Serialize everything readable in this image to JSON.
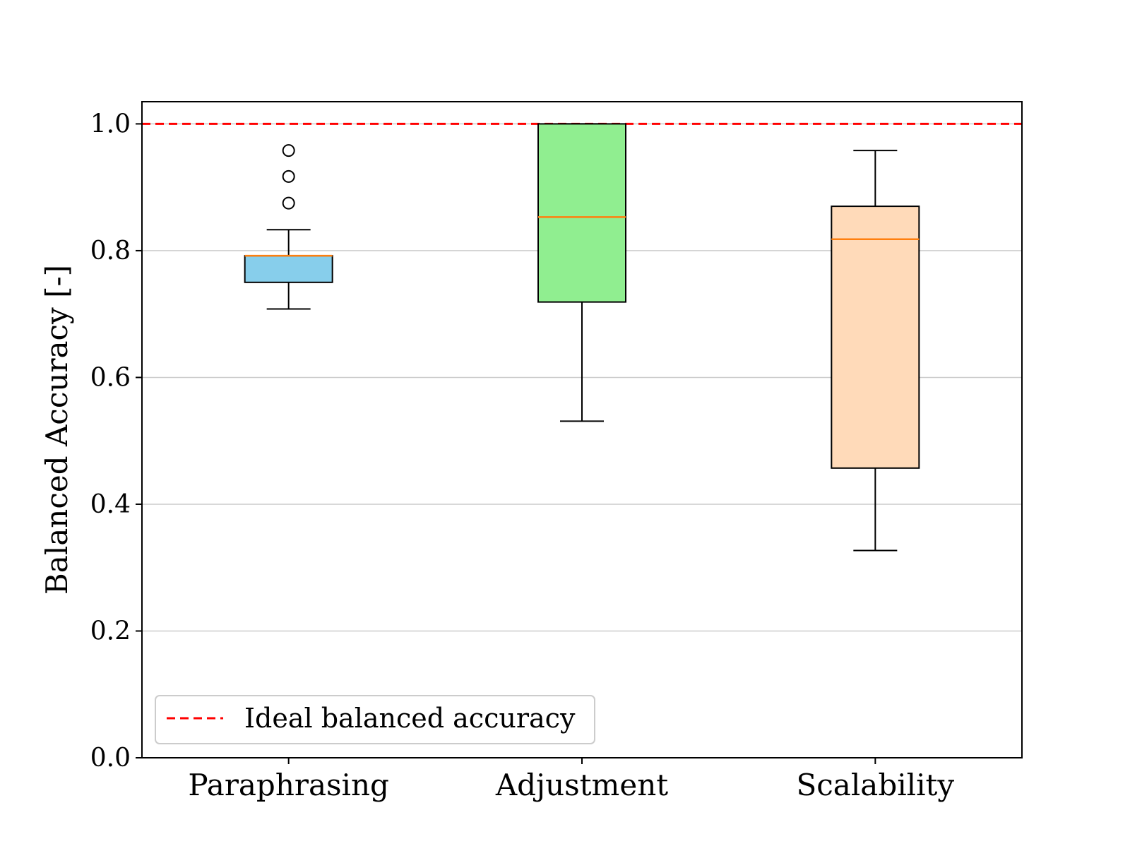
{
  "chart_data": {
    "type": "boxplot",
    "title": "",
    "xlabel": "",
    "ylabel": "Balanced Accuracy [-]",
    "ylim": [
      0.0,
      1.035
    ],
    "yticks": [
      0.0,
      0.2,
      0.4,
      0.6,
      0.8,
      1.0
    ],
    "ytick_labels": [
      "0.0",
      "0.2",
      "0.4",
      "0.6",
      "0.8",
      "1.0"
    ],
    "grid": "horizontal",
    "categories": [
      "Paraphrasing",
      "Adjustment",
      "Scalability"
    ],
    "boxes": [
      {
        "category": "Paraphrasing",
        "whisker_low": 0.708,
        "q1": 0.75,
        "median": 0.792,
        "q3": 0.792,
        "whisker_high": 0.833,
        "outliers": [
          0.875,
          0.917,
          0.958
        ],
        "color": "#87CEEB"
      },
      {
        "category": "Adjustment",
        "whisker_low": 0.531,
        "q1": 0.719,
        "median": 0.853,
        "q3": 1.0,
        "whisker_high": 1.0,
        "outliers": [],
        "color": "#90EE90"
      },
      {
        "category": "Scalability",
        "whisker_low": 0.327,
        "q1": 0.457,
        "median": 0.818,
        "q3": 0.87,
        "whisker_high": 0.958,
        "outliers": [],
        "color": "#FFDAB9"
      }
    ],
    "reference_line": {
      "value": 1.0,
      "label": "Ideal balanced accuracy",
      "color": "#FF0000",
      "style": "dashed"
    },
    "legend": {
      "position": "lower-left",
      "entries": [
        "Ideal balanced accuracy"
      ]
    },
    "colors": {
      "median": "#FF7F0E",
      "grid": "#CCCCCC",
      "axis": "#000000"
    }
  }
}
